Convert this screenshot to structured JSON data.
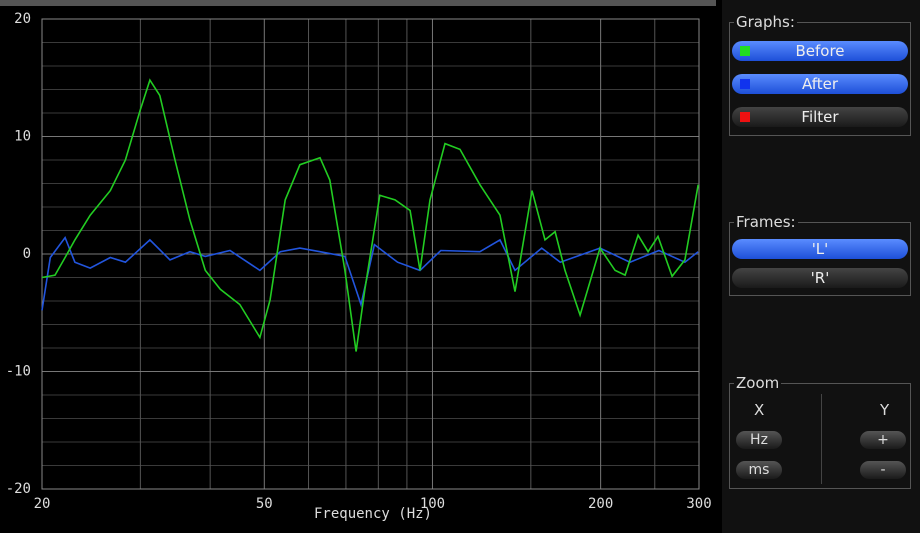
{
  "chart_data": {
    "type": "line",
    "xlabel": "Frequency (Hz)",
    "xscale": "log",
    "xlim": [
      20,
      300
    ],
    "xticks": [
      20,
      50,
      100,
      200,
      300
    ],
    "xminorticks": [
      30,
      40,
      60,
      70,
      80,
      90,
      150,
      250
    ],
    "ylim": [
      -20,
      20
    ],
    "yticks": [
      -20,
      -10,
      0,
      10,
      20
    ],
    "yminorticks": [
      -18,
      -16,
      -14,
      -12,
      -8,
      -6,
      -4,
      -2,
      2,
      4,
      6,
      8,
      12,
      14,
      16,
      18
    ],
    "grid": true,
    "series": [
      {
        "name": "Before",
        "color": "#22cc22",
        "x": [
          20,
          21.1,
          22,
          22.9,
          24.4,
          26.5,
          28.2,
          30,
          31.2,
          32.5,
          34.6,
          36.8,
          39.2,
          41.7,
          45.2,
          49.1,
          51.2,
          54.5,
          57.9,
          62.9,
          65.5,
          69.7,
          73,
          75.7,
          80.5,
          85.7,
          91.2,
          95,
          99,
          105.3,
          112,
          121.6,
          132.1,
          140.5,
          150.7,
          159,
          165.8,
          172.7,
          183.8,
          199.5,
          212.3,
          221.2,
          233.4,
          243.2,
          253.4,
          268.5,
          283.1,
          299
        ],
        "values": [
          -2,
          -1.8,
          -0.3,
          1.2,
          3.3,
          5.4,
          8,
          12.3,
          14.8,
          13.5,
          8,
          2.9,
          -1.4,
          -3,
          -4.3,
          -7.1,
          -3.9,
          4.6,
          7.6,
          8.2,
          6.3,
          -1.4,
          -8.3,
          -3,
          5,
          4.6,
          3.7,
          -1.4,
          4.6,
          9.4,
          8.9,
          5.9,
          3.3,
          -3.2,
          5.4,
          1.2,
          1.9,
          -1.4,
          -5.2,
          0.5,
          -1.4,
          -1.8,
          1.6,
          0.2,
          1.5,
          -1.9,
          -0.5,
          5.9
        ]
      },
      {
        "name": "After",
        "color": "#2255dd",
        "x": [
          20,
          20.7,
          22,
          22.9,
          24.4,
          26.5,
          28.2,
          31.2,
          33.9,
          36.8,
          39.2,
          43.4,
          49.1,
          53.4,
          57.9,
          62.9,
          69.7,
          74.5,
          78.7,
          86.6,
          95,
          103.5,
          121.6,
          132.1,
          140.5,
          156.9,
          169.4,
          199.5,
          225.7,
          254.3,
          283.1,
          299
        ],
        "values": [
          -4.8,
          -0.3,
          1.4,
          -0.7,
          -1.2,
          -0.3,
          -0.7,
          1.2,
          -0.5,
          0.2,
          -0.2,
          0.3,
          -1.4,
          0.2,
          0.5,
          0.2,
          -0.2,
          -4.3,
          0.8,
          -0.7,
          -1.4,
          0.3,
          0.2,
          1.2,
          -1.4,
          0.5,
          -0.7,
          0.5,
          -0.7,
          0.3,
          -0.7,
          0.2
        ]
      }
    ]
  },
  "ui": {
    "graphs": {
      "title": "Graphs:",
      "buttons": [
        {
          "label": "Before",
          "color": "#22dd22",
          "active": true
        },
        {
          "label": "After",
          "color": "#1133ee",
          "active": true
        },
        {
          "label": "Filter",
          "color": "#ee1111",
          "active": false
        }
      ]
    },
    "frames": {
      "title": "Frames:",
      "buttons": [
        {
          "label": "'L'",
          "active": true
        },
        {
          "label": "'R'",
          "active": false
        }
      ]
    },
    "zoom": {
      "title": "Zoom",
      "x": "X",
      "y": "Y",
      "x_buttons": [
        "Hz",
        "ms"
      ],
      "y_buttons": [
        "+",
        "-"
      ]
    }
  }
}
